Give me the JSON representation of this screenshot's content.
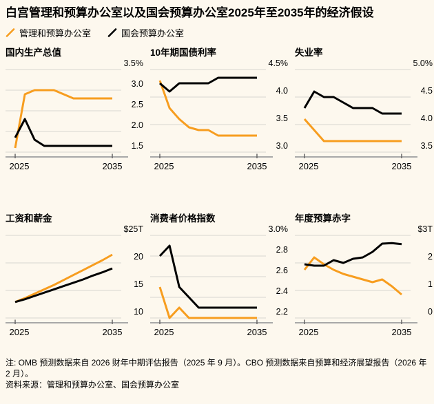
{
  "title": "白宫管理和预算办公室以及国会预算办公室2025年至2035年的经济假设",
  "legend": [
    {
      "key": "omb",
      "label": "管理和预算办公室",
      "color": "#F79D1F"
    },
    {
      "key": "cbo",
      "label": "国会预算办公室",
      "color": "#000000"
    }
  ],
  "colors": {
    "background": "#FDF8EE",
    "accent_orange": "#F79D1F",
    "line_black": "#000000",
    "gridline": "#D8D6D0",
    "axis": "#A8A8A8",
    "tick": "#666666",
    "text": "#000000"
  },
  "footer": {
    "note": "注: OMB 预测数据来自 2026 财年中期评估报告（2025 年 9 月）。CBO 预测数据来自预算和经济展望报告（2026 年 2 月）。",
    "source": "资料来源：管理和预算办公室、国会预算办公室"
  },
  "chart_data": [
    {
      "type": "line",
      "title": "国内生产总值",
      "unit": "%",
      "x": [
        2025,
        2026,
        2027,
        2028,
        2029,
        2030,
        2031,
        2032,
        2033,
        2034,
        2035
      ],
      "x_tick_labels": [
        "2025",
        "2035"
      ],
      "gridline_values": [
        3.5,
        3.0,
        2.5,
        2.0,
        1.5
      ],
      "grid_labels": [
        "3.5%",
        "3.0",
        "2.5",
        "2.0",
        "1.5"
      ],
      "series": [
        {
          "key": "omb",
          "name": "管理和预算办公室",
          "color": "#F79D1F",
          "values": [
            1.6,
            2.9,
            3.0,
            3.0,
            3.0,
            2.9,
            2.8,
            2.8,
            2.8,
            2.8,
            2.8
          ]
        },
        {
          "key": "cbo",
          "name": "国会预算办公室",
          "color": "#000000",
          "values": [
            1.85,
            2.3,
            1.8,
            1.65,
            1.65,
            1.65,
            1.65,
            1.65,
            1.65,
            1.65,
            1.65
          ]
        }
      ]
    },
    {
      "type": "line",
      "title": "10年期国债利率",
      "unit": "%",
      "x": [
        2025,
        2026,
        2027,
        2028,
        2029,
        2030,
        2031,
        2032,
        2033,
        2034,
        2035
      ],
      "x_tick_labels": [
        "2025",
        "2035"
      ],
      "gridline_values": [
        4.5,
        4.0,
        3.5,
        3.0
      ],
      "grid_labels": [
        "4.5%",
        "4.0",
        "3.5",
        "3.0"
      ],
      "series": [
        {
          "key": "omb",
          "name": "管理和预算办公室",
          "color": "#F79D1F",
          "values": [
            4.3,
            3.8,
            3.6,
            3.45,
            3.4,
            3.4,
            3.3,
            3.3,
            3.3,
            3.3,
            3.3
          ]
        },
        {
          "key": "cbo",
          "name": "国会预算办公室",
          "color": "#000000",
          "values": [
            4.25,
            4.1,
            4.25,
            4.25,
            4.25,
            4.25,
            4.35,
            4.35,
            4.35,
            4.35,
            4.35
          ]
        }
      ]
    },
    {
      "type": "line",
      "title": "失业率",
      "unit": "%",
      "x": [
        2025,
        2026,
        2027,
        2028,
        2029,
        2030,
        2031,
        2032,
        2033,
        2034,
        2035
      ],
      "x_tick_labels": [
        "2025",
        "2035"
      ],
      "gridline_values": [
        5.0,
        4.5,
        4.0,
        3.5
      ],
      "grid_labels": [
        "5.0%",
        "4.5",
        "4.0",
        "3.5"
      ],
      "series": [
        {
          "key": "omb",
          "name": "管理和预算办公室",
          "color": "#F79D1F",
          "values": [
            4.1,
            3.9,
            3.7,
            3.7,
            3.7,
            3.7,
            3.7,
            3.7,
            3.7,
            3.7,
            3.7
          ]
        },
        {
          "key": "cbo",
          "name": "国会预算办公室",
          "color": "#000000",
          "values": [
            4.3,
            4.6,
            4.5,
            4.5,
            4.4,
            4.3,
            4.3,
            4.3,
            4.2,
            4.2,
            4.2
          ]
        }
      ]
    },
    {
      "type": "line",
      "title": "工资和薪金",
      "unit": "$T",
      "x": [
        2025,
        2026,
        2027,
        2028,
        2029,
        2030,
        2031,
        2032,
        2033,
        2034,
        2035
      ],
      "x_tick_labels": [
        "2025",
        "2035"
      ],
      "gridline_values": [
        25,
        20,
        15,
        10
      ],
      "grid_labels": [
        "$25T",
        "20",
        "15",
        "10"
      ],
      "series": [
        {
          "key": "omb",
          "name": "管理和预算办公室",
          "color": "#F79D1F",
          "values": [
            12.9,
            13.6,
            14.4,
            15.2,
            16.0,
            16.9,
            17.8,
            18.7,
            19.6,
            20.5,
            21.5
          ]
        },
        {
          "key": "cbo",
          "name": "国会预算办公室",
          "color": "#000000",
          "values": [
            12.9,
            13.4,
            14.0,
            14.6,
            15.2,
            15.8,
            16.4,
            17.0,
            17.7,
            18.3,
            19.0
          ]
        }
      ]
    },
    {
      "type": "line",
      "title": "消费者价格指数",
      "unit": "%",
      "x": [
        2025,
        2026,
        2027,
        2028,
        2029,
        2030,
        2031,
        2032,
        2033,
        2034,
        2035
      ],
      "x_tick_labels": [
        "2025",
        "2035"
      ],
      "gridline_values": [
        3.0,
        2.8,
        2.6,
        2.4,
        2.2
      ],
      "grid_labels": [
        "3.0%",
        "2.8",
        "2.6",
        "2.4",
        "2.2"
      ],
      "series": [
        {
          "key": "omb",
          "name": "管理和预算办公室",
          "color": "#F79D1F",
          "values": [
            2.5,
            2.2,
            2.3,
            2.2,
            2.2,
            2.2,
            2.2,
            2.2,
            2.2,
            2.2,
            2.2
          ]
        },
        {
          "key": "cbo",
          "name": "国会预算办公室",
          "color": "#000000",
          "values": [
            2.8,
            2.9,
            2.5,
            2.4,
            2.3,
            2.3,
            2.3,
            2.3,
            2.3,
            2.3,
            2.3
          ]
        }
      ]
    },
    {
      "type": "line",
      "title": "年度预算赤字",
      "unit": "$T",
      "x": [
        2025,
        2026,
        2027,
        2028,
        2029,
        2030,
        2031,
        2032,
        2033,
        2034,
        2035
      ],
      "x_tick_labels": [
        "2025",
        "2035"
      ],
      "gridline_values": [
        3,
        2,
        1,
        0
      ],
      "grid_labels": [
        "$3T",
        "2",
        "1",
        "0"
      ],
      "series": [
        {
          "key": "omb",
          "name": "管理和预算办公室",
          "color": "#F79D1F",
          "values": [
            1.75,
            2.2,
            1.95,
            1.75,
            1.6,
            1.5,
            1.4,
            1.3,
            1.4,
            1.15,
            0.85
          ]
        },
        {
          "key": "cbo",
          "name": "国会预算办公室",
          "color": "#000000",
          "values": [
            1.95,
            1.9,
            1.9,
            2.1,
            2.0,
            2.15,
            2.2,
            2.4,
            2.7,
            2.72,
            2.68
          ]
        }
      ]
    }
  ]
}
